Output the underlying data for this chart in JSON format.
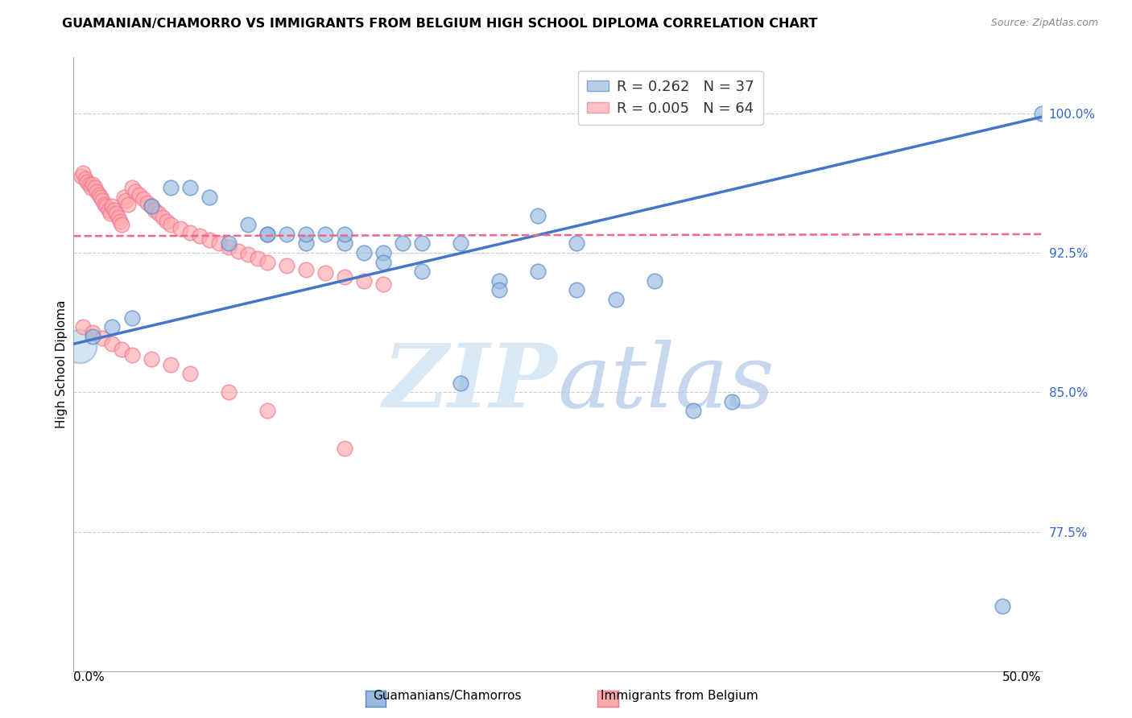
{
  "title": "GUAMANIAN/CHAMORRO VS IMMIGRANTS FROM BELGIUM HIGH SCHOOL DIPLOMA CORRELATION CHART",
  "source": "Source: ZipAtlas.com",
  "xlabel_bottom_left": "0.0%",
  "xlabel_bottom_right": "50.0%",
  "ylabel": "High School Diploma",
  "ytick_labels": [
    "100.0%",
    "92.5%",
    "85.0%",
    "77.5%"
  ],
  "ytick_values": [
    1.0,
    0.925,
    0.85,
    0.775
  ],
  "xlim": [
    0.0,
    0.5
  ],
  "ylim": [
    0.7,
    1.03
  ],
  "legend_blue_r": "0.262",
  "legend_blue_n": "37",
  "legend_pink_r": "0.005",
  "legend_pink_n": "64",
  "legend_blue_label": "Guamanians/Chamorros",
  "legend_pink_label": "Immigrants from Belgium",
  "blue_color": "#99BBDD",
  "pink_color": "#FFAAAA",
  "blue_edge_color": "#5588CC",
  "pink_edge_color": "#EE7799",
  "blue_line_color": "#4477CC",
  "pink_line_color": "#EE6688",
  "right_axis_color": "#3366CC",
  "grid_color": "#CCCCCC",
  "background_color": "#FFFFFF",
  "blue_scatter_x": [
    0.01,
    0.02,
    0.03,
    0.04,
    0.05,
    0.06,
    0.07,
    0.08,
    0.09,
    0.1,
    0.11,
    0.12,
    0.13,
    0.14,
    0.15,
    0.16,
    0.17,
    0.18,
    0.2,
    0.22,
    0.24,
    0.26,
    0.1,
    0.12,
    0.14,
    0.16,
    0.18,
    0.2,
    0.22,
    0.24,
    0.26,
    0.28,
    0.3,
    0.32,
    0.34,
    0.48,
    0.5
  ],
  "blue_scatter_y": [
    0.88,
    0.885,
    0.89,
    0.95,
    0.96,
    0.96,
    0.955,
    0.93,
    0.94,
    0.935,
    0.935,
    0.93,
    0.935,
    0.93,
    0.925,
    0.925,
    0.93,
    0.93,
    0.93,
    0.91,
    0.945,
    0.93,
    0.935,
    0.935,
    0.935,
    0.92,
    0.915,
    0.855,
    0.905,
    0.915,
    0.905,
    0.9,
    0.91,
    0.84,
    0.845,
    0.735,
    1.0
  ],
  "pink_scatter_x": [
    0.004,
    0.005,
    0.006,
    0.007,
    0.008,
    0.009,
    0.01,
    0.011,
    0.012,
    0.013,
    0.014,
    0.015,
    0.016,
    0.017,
    0.018,
    0.019,
    0.02,
    0.021,
    0.022,
    0.023,
    0.024,
    0.025,
    0.026,
    0.027,
    0.028,
    0.03,
    0.032,
    0.034,
    0.036,
    0.038,
    0.04,
    0.042,
    0.044,
    0.046,
    0.048,
    0.05,
    0.055,
    0.06,
    0.065,
    0.07,
    0.075,
    0.08,
    0.085,
    0.09,
    0.095,
    0.1,
    0.11,
    0.12,
    0.13,
    0.14,
    0.15,
    0.16,
    0.005,
    0.01,
    0.015,
    0.02,
    0.025,
    0.03,
    0.04,
    0.05,
    0.06,
    0.08,
    0.1,
    0.14
  ],
  "pink_scatter_y": [
    0.966,
    0.968,
    0.965,
    0.963,
    0.962,
    0.96,
    0.962,
    0.96,
    0.958,
    0.956,
    0.955,
    0.953,
    0.951,
    0.95,
    0.948,
    0.946,
    0.95,
    0.948,
    0.946,
    0.944,
    0.942,
    0.94,
    0.955,
    0.953,
    0.951,
    0.96,
    0.958,
    0.956,
    0.954,
    0.952,
    0.95,
    0.948,
    0.946,
    0.944,
    0.942,
    0.94,
    0.938,
    0.936,
    0.934,
    0.932,
    0.93,
    0.928,
    0.926,
    0.924,
    0.922,
    0.92,
    0.918,
    0.916,
    0.914,
    0.912,
    0.91,
    0.908,
    0.885,
    0.882,
    0.879,
    0.876,
    0.873,
    0.87,
    0.868,
    0.865,
    0.86,
    0.85,
    0.84,
    0.82
  ],
  "blue_trendline_x": [
    0.0,
    0.5
  ],
  "blue_trendline_y": [
    0.876,
    0.998
  ],
  "pink_trendline_x": [
    0.0,
    0.5
  ],
  "pink_trendline_y": [
    0.934,
    0.935
  ]
}
